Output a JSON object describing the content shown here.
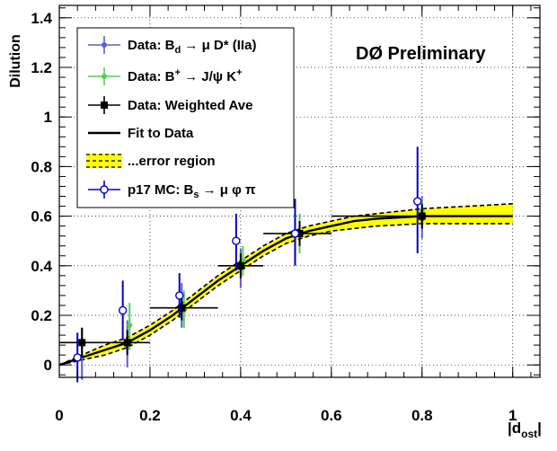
{
  "chart_data": {
    "type": "scatter",
    "annotation": "DØ Preliminary",
    "xlabel": "|d",
    "xlabel_sub": "ost",
    "xlabel_close": "|",
    "ylabel": "Dilution",
    "xlim": [
      0,
      1.06
    ],
    "ylim": [
      -0.05,
      1.45
    ],
    "x_ticks": [
      0,
      0.2,
      0.4,
      0.6,
      0.8,
      1
    ],
    "x_tick_labels": [
      "0",
      "0.2",
      "0.4",
      "0.6",
      "0.8",
      "1"
    ],
    "y_ticks": [
      0,
      0.2,
      0.4,
      0.6,
      0.8,
      1,
      1.2,
      1.4
    ],
    "y_tick_labels": [
      "0",
      "0.2",
      "0.4",
      "0.6",
      "0.8",
      "1",
      "1.2",
      "1.4"
    ],
    "grid": true,
    "legend_position": "top-left",
    "legend": [
      {
        "kind": "blue-errorbar",
        "text": "Data: B",
        "sub": "d",
        "rest": " → μ D* (IIa)"
      },
      {
        "kind": "green-errorbar",
        "text": "Data: B",
        "sup": "+",
        "rest": " → J/ψ K",
        "sup2": "+"
      },
      {
        "kind": "black-errorbar",
        "text": "Data: Weighted Ave"
      },
      {
        "kind": "line",
        "text": "Fit to Data"
      },
      {
        "kind": "band",
        "text": "...error region"
      },
      {
        "kind": "open-circle",
        "text": "p17 MC: B",
        "sub": "s",
        "rest": " → μ φ π"
      }
    ],
    "colors": {
      "blue_data": "#5a5ad6",
      "green_data": "#55cc55",
      "weighted": "#000000",
      "band_fill": "#ffff00",
      "mc": "#0000cc"
    },
    "series": [
      {
        "name": "Data: Bd → μ D* (IIa)",
        "color": "#5a5ad6",
        "marker": "filled-circle",
        "points": [
          {
            "x": 0.05,
            "y": 0.09,
            "ylo": -0.06,
            "yhi": 0.15
          },
          {
            "x": 0.15,
            "y": 0.08,
            "ylo": -0.01,
            "yhi": 0.18
          },
          {
            "x": 0.27,
            "y": 0.24,
            "ylo": 0.15,
            "yhi": 0.33
          },
          {
            "x": 0.4,
            "y": 0.39,
            "ylo": 0.31,
            "yhi": 0.47
          },
          {
            "x": 0.52,
            "y": 0.53,
            "ylo": 0.45,
            "yhi": 0.61
          },
          {
            "x": 0.8,
            "y": 0.59,
            "ylo": 0.51,
            "yhi": 0.68
          }
        ]
      },
      {
        "name": "Data: B+ → J/ψ K+",
        "color": "#55cc55",
        "marker": "filled-circle",
        "points": [
          {
            "x": 0.05,
            "y": 0.09,
            "ylo": 0.03,
            "yhi": 0.15
          },
          {
            "x": 0.155,
            "y": 0.16,
            "ylo": 0.06,
            "yhi": 0.25
          },
          {
            "x": 0.275,
            "y": 0.22,
            "ylo": 0.15,
            "yhi": 0.3
          },
          {
            "x": 0.405,
            "y": 0.42,
            "ylo": 0.36,
            "yhi": 0.48
          },
          {
            "x": 0.53,
            "y": 0.53,
            "ylo": 0.45,
            "yhi": 0.61
          },
          {
            "x": 0.8,
            "y": 0.62,
            "ylo": 0.56,
            "yhi": 0.67
          }
        ]
      },
      {
        "name": "Data: Weighted Ave",
        "color": "#000000",
        "marker": "filled-square",
        "points": [
          {
            "x": 0.05,
            "y": 0.09,
            "xlo": 0.0,
            "xhi": 0.1,
            "ylo": 0.03,
            "yhi": 0.15
          },
          {
            "x": 0.15,
            "y": 0.09,
            "xlo": 0.1,
            "xhi": 0.2,
            "ylo": 0.04,
            "yhi": 0.14
          },
          {
            "x": 0.27,
            "y": 0.23,
            "xlo": 0.2,
            "xhi": 0.35,
            "ylo": 0.18,
            "yhi": 0.28
          },
          {
            "x": 0.4,
            "y": 0.4,
            "xlo": 0.35,
            "xhi": 0.45,
            "ylo": 0.35,
            "yhi": 0.45
          },
          {
            "x": 0.53,
            "y": 0.53,
            "xlo": 0.45,
            "xhi": 0.6,
            "ylo": 0.48,
            "yhi": 0.58
          },
          {
            "x": 0.8,
            "y": 0.6,
            "xlo": 0.6,
            "xhi": 1.0,
            "ylo": 0.55,
            "yhi": 0.65
          }
        ]
      },
      {
        "name": "p17 MC: Bs → μ φ π",
        "color": "#0000cc",
        "marker": "open-circle",
        "points": [
          {
            "x": 0.04,
            "y": 0.03,
            "ylo": -0.07,
            "yhi": 0.13
          },
          {
            "x": 0.14,
            "y": 0.22,
            "ylo": 0.1,
            "yhi": 0.34
          },
          {
            "x": 0.265,
            "y": 0.28,
            "ylo": 0.19,
            "yhi": 0.37
          },
          {
            "x": 0.39,
            "y": 0.5,
            "ylo": 0.38,
            "yhi": 0.61
          },
          {
            "x": 0.52,
            "y": 0.53,
            "ylo": 0.4,
            "yhi": 0.67
          },
          {
            "x": 0.79,
            "y": 0.66,
            "ylo": 0.45,
            "yhi": 0.88
          }
        ]
      }
    ],
    "fit": {
      "name": "Fit to Data",
      "x": [
        0.0,
        0.05,
        0.1,
        0.15,
        0.2,
        0.25,
        0.3,
        0.35,
        0.4,
        0.45,
        0.5,
        0.55,
        0.6,
        0.65,
        0.7,
        0.75,
        0.8,
        0.85,
        0.9,
        0.95,
        1.0
      ],
      "y": [
        0.0,
        0.03,
        0.06,
        0.09,
        0.14,
        0.2,
        0.27,
        0.34,
        0.4,
        0.46,
        0.51,
        0.54,
        0.56,
        0.58,
        0.59,
        0.595,
        0.6,
        0.6,
        0.6,
        0.6,
        0.6
      ],
      "lo": [
        0.0,
        0.02,
        0.04,
        0.07,
        0.12,
        0.18,
        0.25,
        0.32,
        0.38,
        0.44,
        0.49,
        0.52,
        0.54,
        0.55,
        0.56,
        0.565,
        0.57,
        0.57,
        0.57,
        0.57,
        0.57
      ],
      "hi": [
        0.0,
        0.04,
        0.08,
        0.11,
        0.16,
        0.22,
        0.29,
        0.36,
        0.42,
        0.48,
        0.53,
        0.56,
        0.58,
        0.6,
        0.61,
        0.62,
        0.63,
        0.635,
        0.64,
        0.645,
        0.65
      ]
    }
  }
}
